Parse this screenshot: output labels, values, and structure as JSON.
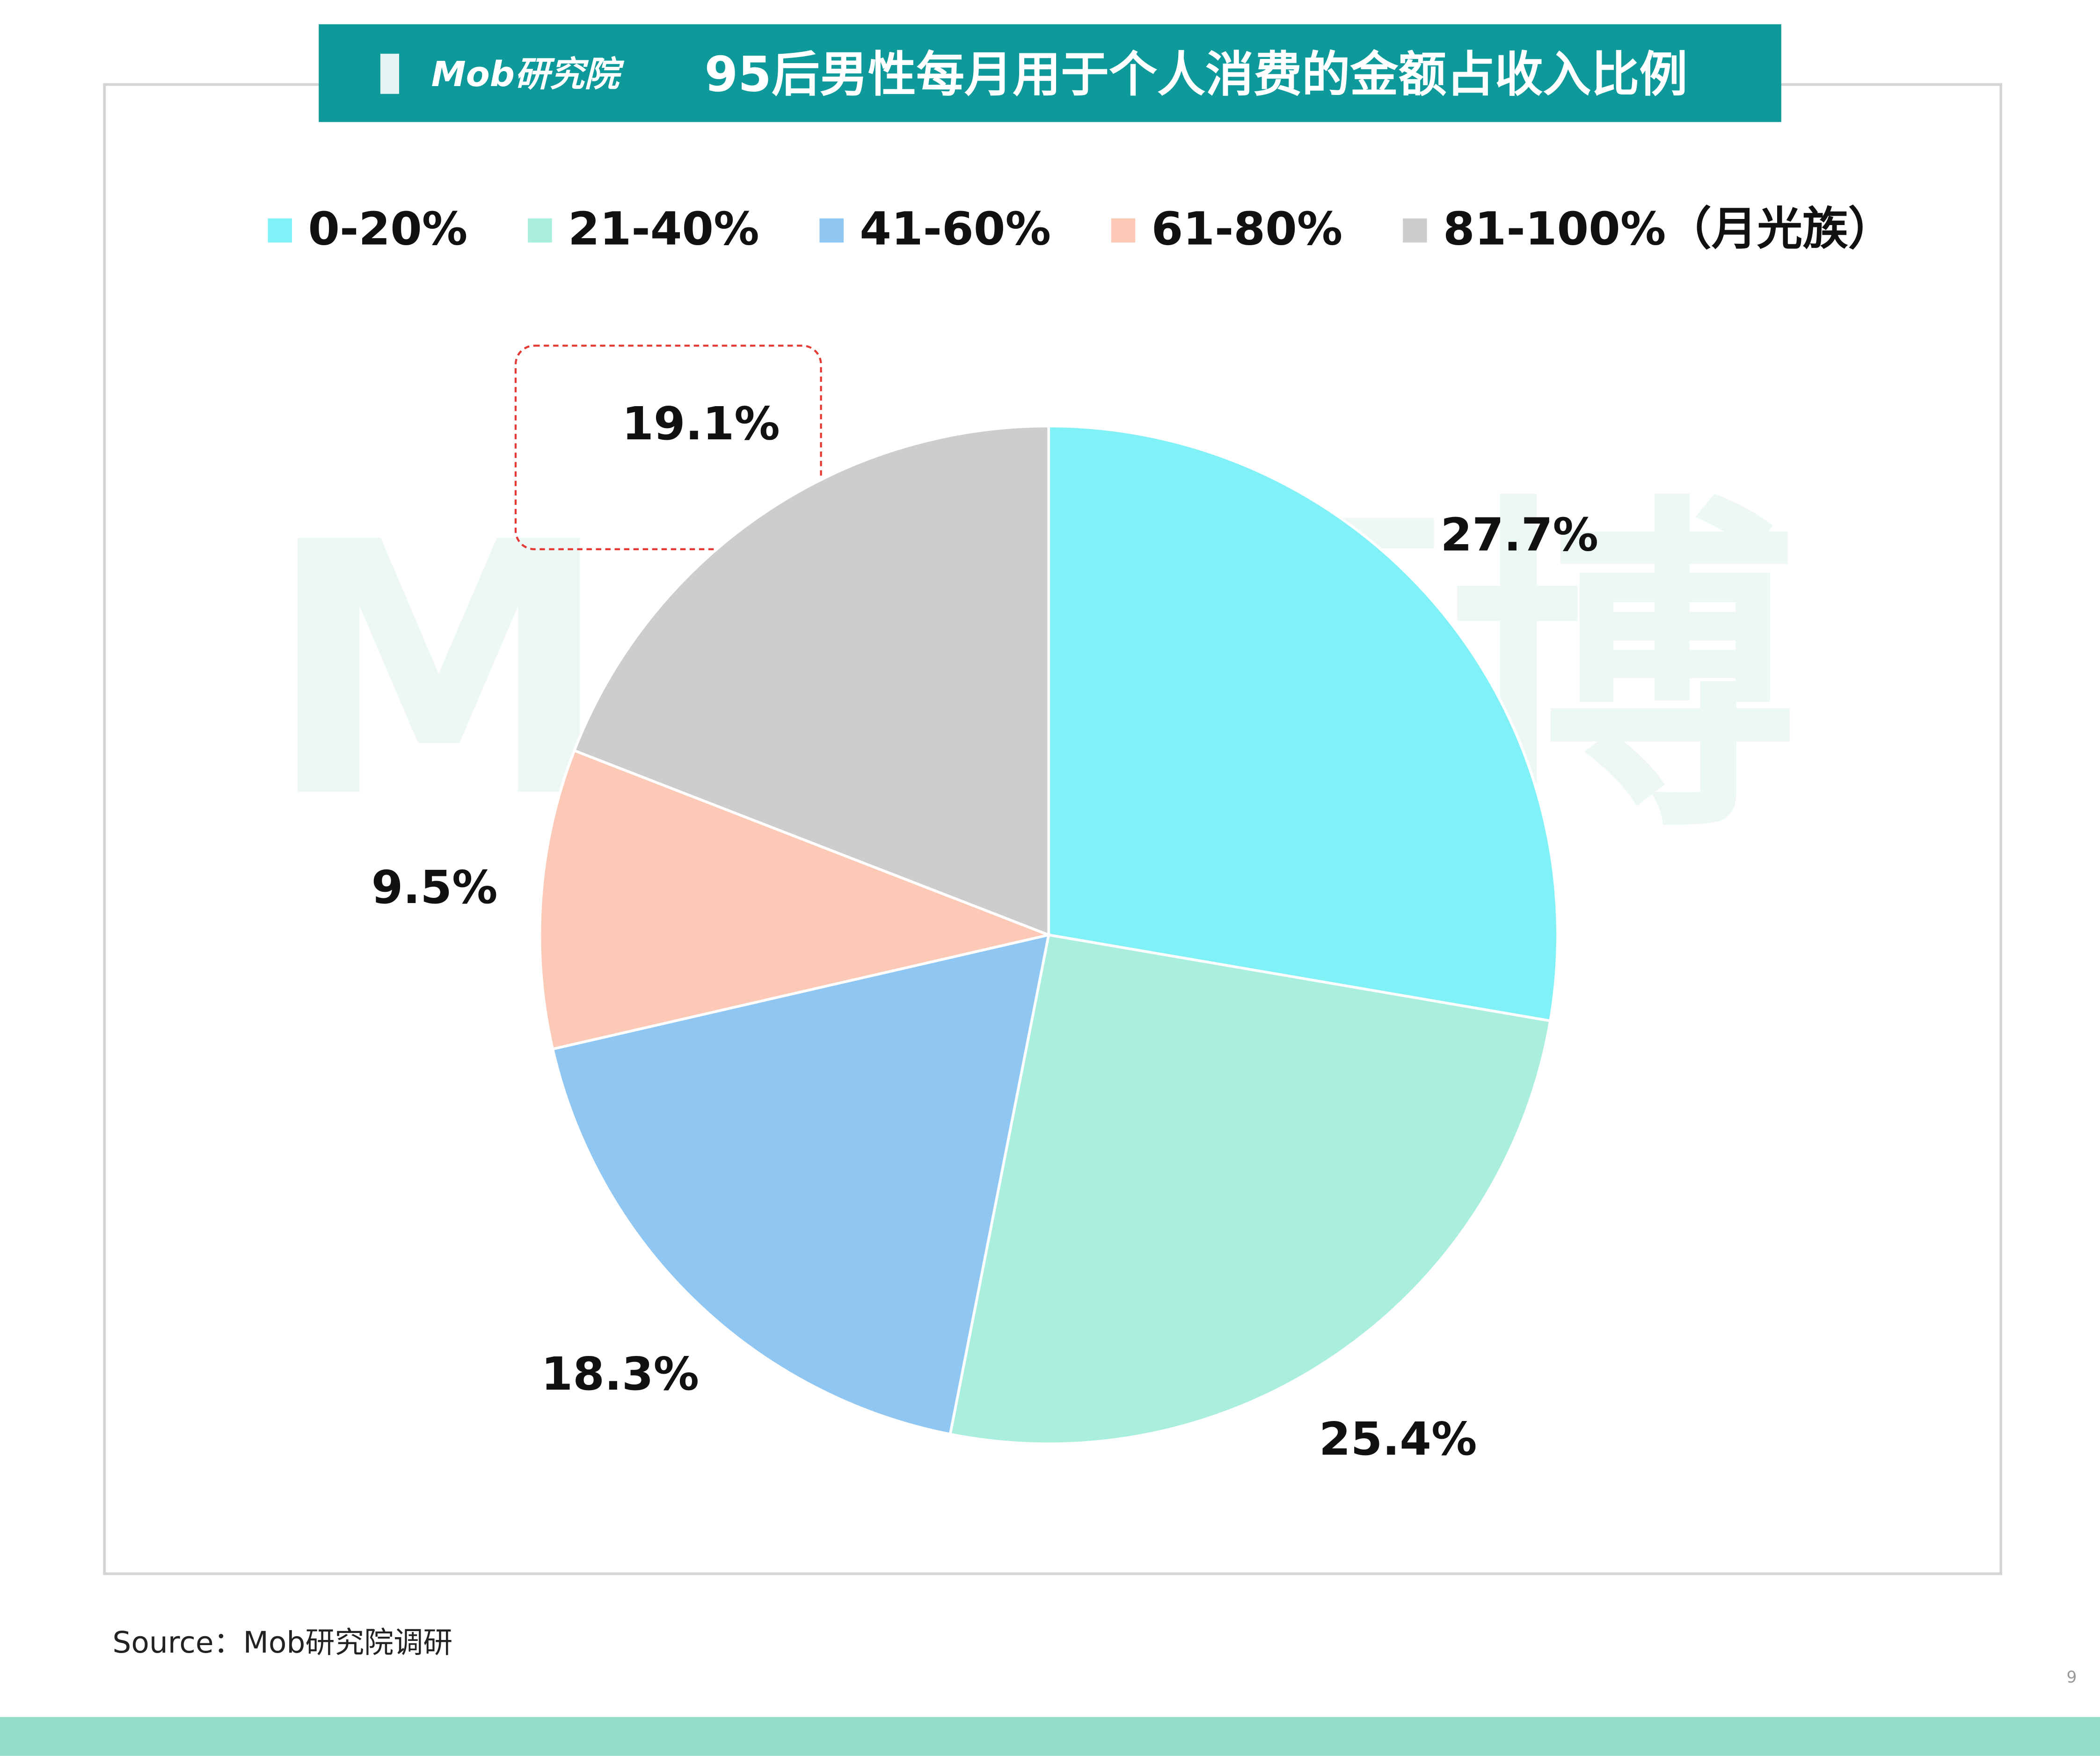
{
  "logo": "Mob研究院",
  "watermark": "Mob袤博",
  "chart_data": {
    "type": "pie",
    "title": "95后男性每月用于个人消费的金额占收入比例",
    "categories": [
      "0-20%",
      "21-40%",
      "41-60%",
      "61-80%",
      "81-100%（月光族）"
    ],
    "values": [
      27.7,
      25.4,
      18.3,
      9.5,
      19.1
    ],
    "value_labels": [
      "27.7%",
      "25.4%",
      "18.3%",
      "9.5%",
      "19.1%"
    ],
    "colors": [
      "#7ff1f7",
      "#aaeedd",
      "#8fc6f2",
      "#fbc9b5",
      "#cdcdcd"
    ],
    "legend": "top"
  },
  "source": "Source：Mob研究院调研",
  "page_number": "9"
}
